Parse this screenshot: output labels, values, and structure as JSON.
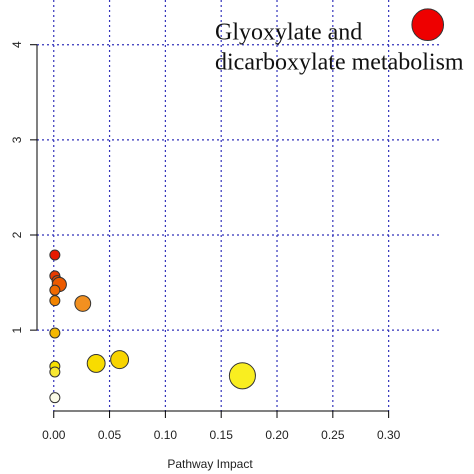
{
  "chart_data": {
    "type": "scatter",
    "xlabel": "Pathway Impact",
    "annotation": [
      "Glyoxylate and",
      "dicarboxylate metabolism"
    ],
    "xlim": [
      -0.015,
      0.346
    ],
    "ylim": [
      0.15,
      4.47
    ],
    "xticks": [
      {
        "value": 0,
        "label": "0.00"
      },
      {
        "value": 0.05,
        "label": "0.05"
      },
      {
        "value": 0.1,
        "label": "0.10"
      },
      {
        "value": 0.15,
        "label": "0.15"
      },
      {
        "value": 0.2,
        "label": "0.20"
      },
      {
        "value": 0.25,
        "label": "0.25"
      },
      {
        "value": 0.3,
        "label": "0.30"
      }
    ],
    "yticks": [
      1,
      2,
      3,
      4
    ],
    "grid": true,
    "x": [
      0.335,
      0.001,
      0.001,
      0.003,
      0.005,
      0.001,
      0.001,
      0.026,
      0.001,
      0.001,
      0.001,
      0.038,
      0.059,
      0.169,
      0.001
    ],
    "y": [
      4.21,
      1.79,
      1.57,
      1.52,
      1.48,
      1.42,
      1.31,
      1.28,
      0.97,
      0.62,
      0.56,
      0.65,
      0.69,
      0.52,
      0.29
    ],
    "sizes": [
      10,
      1,
      1,
      1,
      2,
      1,
      1,
      2.5,
      1,
      1,
      1,
      3.2,
      3.2,
      6.8,
      1
    ],
    "colors": [
      "#ee0000",
      "#e61a00",
      "#e83a00",
      "#ea4a00",
      "#ec5a00",
      "#ef6a00",
      "#f28400",
      "#f29020",
      "#f5b800",
      "#f7e000",
      "#f8e830",
      "#f8dc00",
      "#f8d400",
      "#f9ee20",
      "#fbfbe8"
    ]
  }
}
